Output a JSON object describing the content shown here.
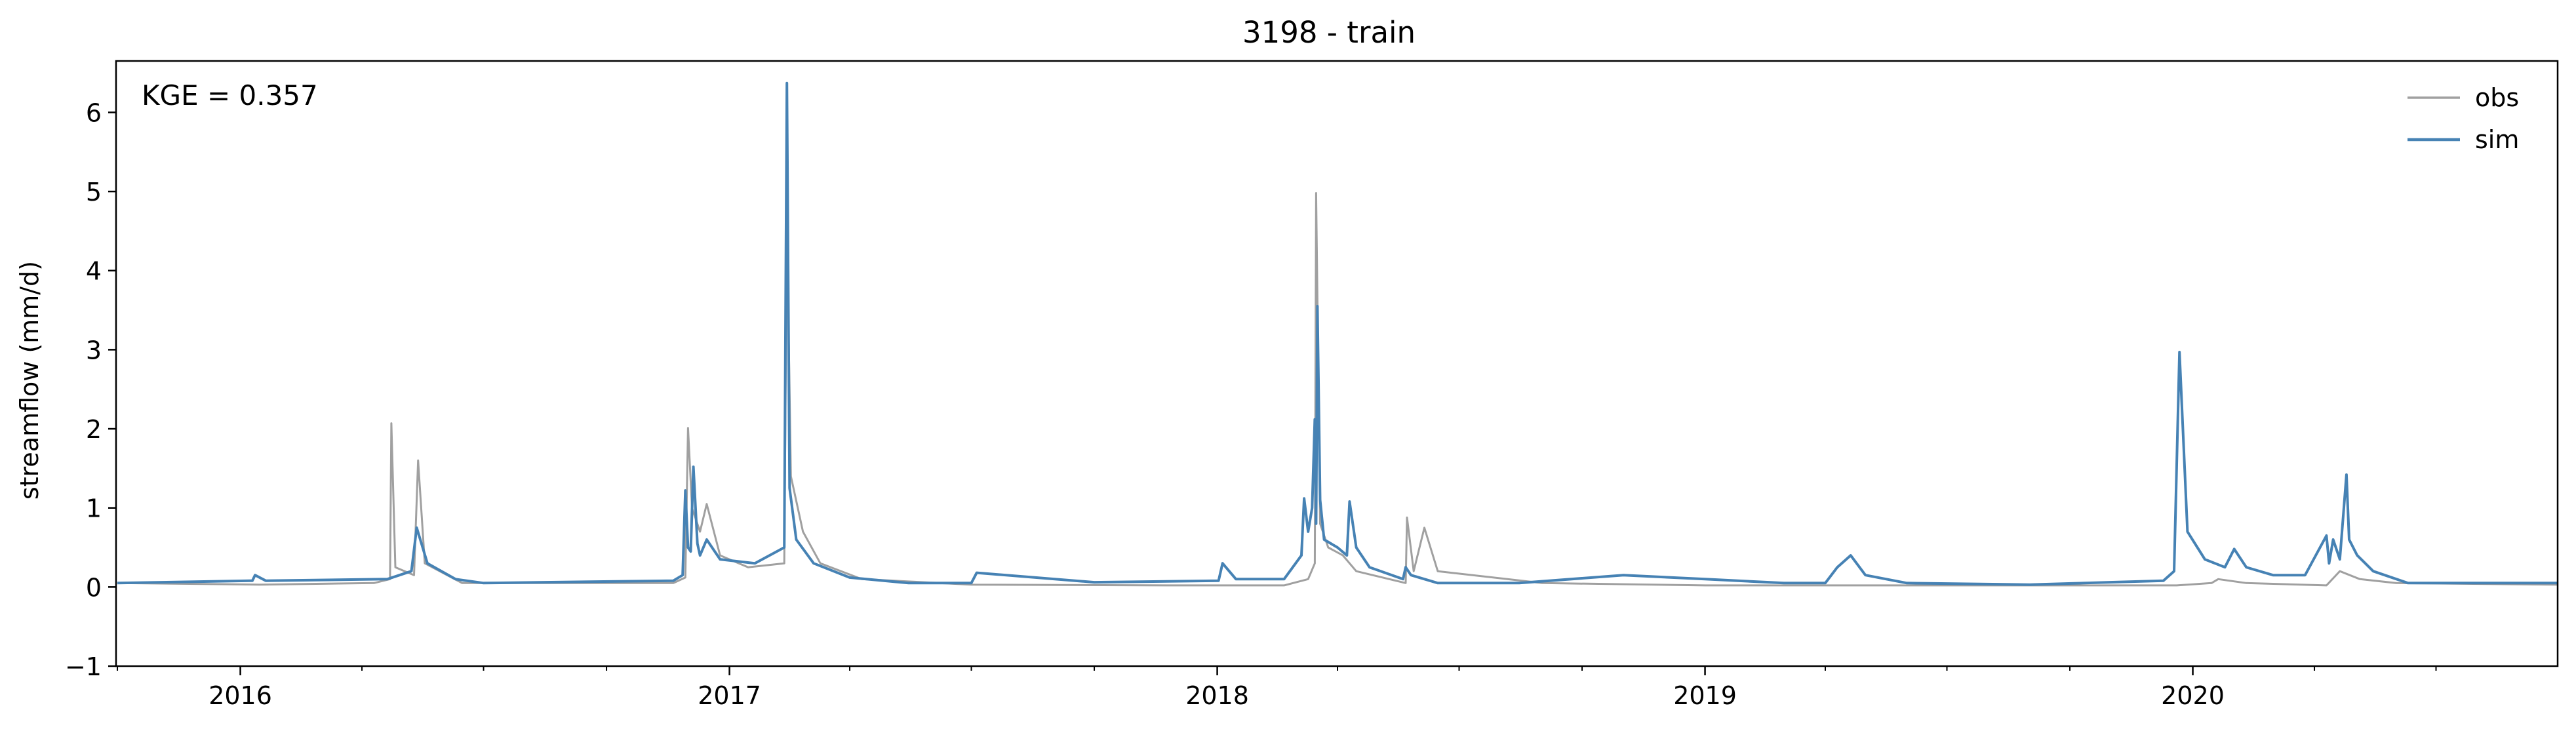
{
  "chart_data": {
    "type": "line",
    "title": "3198 - train",
    "xlabel": "",
    "ylabel": "streamflow (mm/d)",
    "annotation": "KGE = 0.357",
    "grid": false,
    "legend_position": "top-right",
    "x_range": [
      "2015-09-30",
      "2020-09-30"
    ],
    "ylim": [
      -1,
      6.65
    ],
    "x_ticks": [
      {
        "date": "2016-01-01",
        "label": "2016"
      },
      {
        "date": "2017-01-01",
        "label": "2017"
      },
      {
        "date": "2018-01-01",
        "label": "2018"
      },
      {
        "date": "2019-01-01",
        "label": "2019"
      },
      {
        "date": "2020-01-01",
        "label": "2020"
      }
    ],
    "y_ticks": [
      -1,
      0,
      1,
      2,
      3,
      4,
      5,
      6
    ],
    "y_tick_labels": [
      "−1",
      "0",
      "1",
      "2",
      "3",
      "4",
      "5",
      "6"
    ],
    "series": [
      {
        "name": "obs",
        "color": "#a0a0a0",
        "x": [
          "2015-10-01",
          "2016-01-15",
          "2016-04-10",
          "2016-04-22",
          "2016-04-23",
          "2016-04-26",
          "2016-05-10",
          "2016-05-13",
          "2016-05-18",
          "2016-06-15",
          "2016-11-20",
          "2016-11-29",
          "2016-12-01",
          "2016-12-04",
          "2016-12-10",
          "2016-12-15",
          "2016-12-25",
          "2017-01-15",
          "2017-02-11",
          "2017-02-13",
          "2017-02-16",
          "2017-02-25",
          "2017-03-10",
          "2017-04-10",
          "2017-07-01",
          "2017-12-01",
          "2018-02-20",
          "2018-03-10",
          "2018-03-15",
          "2018-03-16",
          "2018-03-19",
          "2018-03-25",
          "2018-04-05",
          "2018-04-15",
          "2018-05-22",
          "2018-05-23",
          "2018-05-28",
          "2018-06-05",
          "2018-06-15",
          "2018-09-01",
          "2019-01-01",
          "2019-06-01",
          "2019-12-15",
          "2019-12-20",
          "2020-01-15",
          "2020-01-20",
          "2020-02-10",
          "2020-04-10",
          "2020-04-20",
          "2020-05-05",
          "2020-06-01",
          "2020-09-30"
        ],
        "values": [
          0.05,
          0.03,
          0.05,
          0.1,
          2.07,
          0.25,
          0.15,
          1.6,
          0.3,
          0.05,
          0.05,
          0.12,
          2.01,
          1.0,
          0.7,
          1.05,
          0.4,
          0.25,
          0.3,
          4.6,
          1.4,
          0.7,
          0.3,
          0.1,
          0.03,
          0.02,
          0.02,
          0.1,
          0.3,
          4.98,
          0.8,
          0.5,
          0.4,
          0.2,
          0.05,
          0.88,
          0.2,
          0.75,
          0.2,
          0.05,
          0.02,
          0.02,
          0.02,
          0.02,
          0.05,
          0.1,
          0.05,
          0.02,
          0.2,
          0.1,
          0.05,
          0.03
        ]
      },
      {
        "name": "sim",
        "color": "#4682b4",
        "x": [
          "2015-10-01",
          "2016-01-10",
          "2016-01-12",
          "2016-01-20",
          "2016-04-20",
          "2016-05-08",
          "2016-05-12",
          "2016-05-20",
          "2016-06-10",
          "2016-07-01",
          "2016-11-20",
          "2016-11-27",
          "2016-11-29",
          "2016-12-01",
          "2016-12-03",
          "2016-12-05",
          "2016-12-08",
          "2016-12-10",
          "2016-12-15",
          "2016-12-25",
          "2017-01-20",
          "2017-02-11",
          "2017-02-13",
          "2017-02-15",
          "2017-02-20",
          "2017-03-05",
          "2017-04-01",
          "2017-05-15",
          "2017-07-01",
          "2017-07-05",
          "2017-10-01",
          "2018-01-02",
          "2018-01-05",
          "2018-01-15",
          "2018-02-20",
          "2018-03-05",
          "2018-03-07",
          "2018-03-10",
          "2018-03-13",
          "2018-03-15",
          "2018-03-16",
          "2018-03-17",
          "2018-03-19",
          "2018-03-22",
          "2018-04-01",
          "2018-04-08",
          "2018-04-10",
          "2018-04-15",
          "2018-04-25",
          "2018-05-20",
          "2018-05-22",
          "2018-05-26",
          "2018-06-15",
          "2018-08-15",
          "2018-11-01",
          "2019-01-01",
          "2019-03-01",
          "2019-04-01",
          "2019-04-10",
          "2019-04-20",
          "2019-05-01",
          "2019-06-01",
          "2019-09-01",
          "2019-12-10",
          "2019-12-18",
          "2019-12-22",
          "2019-12-28",
          "2020-01-10",
          "2020-01-25",
          "2020-02-01",
          "2020-02-10",
          "2020-03-01",
          "2020-03-25",
          "2020-04-10",
          "2020-04-12",
          "2020-04-15",
          "2020-04-20",
          "2020-04-25",
          "2020-04-27",
          "2020-05-03",
          "2020-05-15",
          "2020-06-10",
          "2020-07-01",
          "2020-09-30"
        ],
        "values": [
          0.05,
          0.08,
          0.15,
          0.08,
          0.1,
          0.2,
          0.75,
          0.3,
          0.1,
          0.05,
          0.08,
          0.15,
          1.22,
          0.5,
          0.45,
          1.52,
          0.55,
          0.4,
          0.6,
          0.35,
          0.3,
          0.5,
          6.37,
          1.25,
          0.6,
          0.3,
          0.12,
          0.05,
          0.05,
          0.18,
          0.06,
          0.08,
          0.3,
          0.1,
          0.1,
          0.4,
          1.12,
          0.7,
          1.0,
          2.12,
          0.8,
          3.55,
          1.1,
          0.6,
          0.5,
          0.4,
          1.08,
          0.5,
          0.25,
          0.1,
          0.25,
          0.15,
          0.05,
          0.05,
          0.15,
          0.1,
          0.05,
          0.05,
          0.25,
          0.4,
          0.15,
          0.05,
          0.03,
          0.08,
          0.2,
          2.97,
          0.7,
          0.35,
          0.25,
          0.48,
          0.25,
          0.15,
          0.15,
          0.65,
          0.3,
          0.6,
          0.35,
          1.42,
          0.6,
          0.4,
          0.2,
          0.05,
          0.05,
          0.05
        ]
      }
    ]
  }
}
